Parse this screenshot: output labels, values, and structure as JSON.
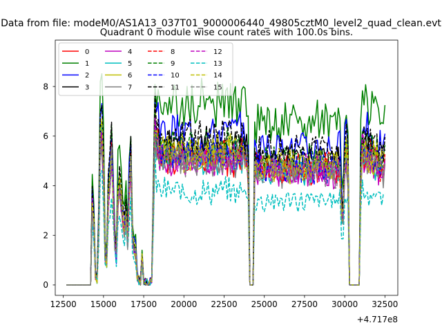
{
  "figure": {
    "suptitle": "Data from file: modeM0/AS1A13_037T01_9000006440_49805cztM0_level2_quad_clean.evt",
    "bg": "#ffffff"
  },
  "chart_data": {
    "type": "line",
    "title": "Quadrant 0 module wise count rates with 100.0s bins.",
    "xlabel": "",
    "ylabel": "",
    "x_offset_label": "+4.717e8",
    "x_offset": 471700000,
    "xlim": [
      12000,
      33300
    ],
    "ylim": [
      -0.42,
      9.87
    ],
    "xticks": [
      12500,
      15000,
      17500,
      20000,
      22500,
      25000,
      27500,
      30000,
      32500
    ],
    "xtick_labels": [
      "12500",
      "15000",
      "17500",
      "20000",
      "22500",
      "25000",
      "27500",
      "30000",
      "32500"
    ],
    "yticks": [
      0,
      2,
      4,
      6,
      8
    ],
    "ytick_labels": [
      "0",
      "2",
      "4",
      "6",
      "8"
    ],
    "legend_position": "upper-left",
    "legend_ncol": 4,
    "bin_size": 100,
    "x_start": 12700,
    "x_end": 32500,
    "profile_x": [
      12700,
      14000,
      14200,
      14300,
      14400,
      14500,
      14600,
      14700,
      14800,
      14900,
      15000,
      15100,
      15200,
      15300,
      15400,
      15500,
      15600,
      15700,
      15800,
      15900,
      16000,
      16100,
      16200,
      16300,
      16400,
      16500,
      16600,
      16700,
      16800,
      16900,
      17000,
      17100,
      17200,
      17300,
      17400,
      17500,
      17600,
      17700,
      17800,
      17900,
      18000,
      18100,
      18200,
      18300,
      18400,
      18500,
      23900,
      24000,
      24100,
      24200,
      24300,
      24400,
      29700,
      29800,
      29900,
      30000,
      30100,
      30200,
      30300,
      30900,
      31000,
      31100,
      31200,
      32500
    ],
    "profile_y": [
      0,
      0,
      0,
      3.3,
      2.4,
      0.4,
      0.2,
      2.2,
      5.4,
      5.8,
      4.3,
      1.1,
      0.9,
      3.4,
      4.1,
      5.1,
      3.6,
      1.6,
      1.1,
      3.4,
      3.9,
      3.2,
      2.6,
      2.1,
      2.9,
      1.7,
      3.9,
      4.8,
      1.8,
      1.4,
      1.3,
      0.3,
      0.2,
      0.1,
      1.0,
      0.1,
      0.1,
      0.1,
      0.0,
      0.1,
      0.2,
      2.9,
      6.4,
      5.6,
      5.6,
      5.1,
      5.1,
      4.3,
      0.0,
      0.0,
      0.0,
      4.6,
      4.6,
      2.9,
      2.6,
      4.7,
      5.0,
      4.5,
      0.0,
      0.0,
      4.4,
      5.5,
      5.2,
      4.6
    ],
    "series": [
      {
        "name": "0",
        "color": "#ff0000",
        "style": "solid",
        "scale": 1.0,
        "seed": 1
      },
      {
        "name": "1",
        "color": "#008000",
        "style": "solid",
        "scale": 1.43,
        "seed": 2
      },
      {
        "name": "2",
        "color": "#0000ff",
        "style": "solid",
        "scale": 1.21,
        "seed": 3
      },
      {
        "name": "3",
        "color": "#000000",
        "style": "solid",
        "scale": 1.08,
        "seed": 4
      },
      {
        "name": "4",
        "color": "#bf00bf",
        "style": "solid",
        "scale": 0.98,
        "seed": 5
      },
      {
        "name": "5",
        "color": "#00bfbf",
        "style": "solid",
        "scale": 1.0,
        "seed": 6
      },
      {
        "name": "6",
        "color": "#bfbf00",
        "style": "solid",
        "scale": 1.03,
        "seed": 7
      },
      {
        "name": "7",
        "color": "#808080",
        "style": "solid",
        "scale": 0.98,
        "seed": 8
      },
      {
        "name": "8",
        "color": "#ff0000",
        "style": "dashed",
        "scale": 1.02,
        "seed": 9
      },
      {
        "name": "9",
        "color": "#008000",
        "style": "dashed",
        "scale": 1.1,
        "seed": 10
      },
      {
        "name": "10",
        "color": "#0000ff",
        "style": "dashed",
        "scale": 1.04,
        "seed": 11
      },
      {
        "name": "11",
        "color": "#000000",
        "style": "dashed",
        "scale": 1.18,
        "seed": 12
      },
      {
        "name": "12",
        "color": "#bf00bf",
        "style": "dashed",
        "scale": 1.0,
        "seed": 13
      },
      {
        "name": "13",
        "color": "#00bfbf",
        "style": "dashed",
        "scale": 0.74,
        "seed": 14
      },
      {
        "name": "14",
        "color": "#bfbf00",
        "style": "dashed",
        "scale": 1.06,
        "seed": 15
      },
      {
        "name": "15",
        "color": "#808080",
        "style": "dashed",
        "scale": 1.0,
        "seed": 16
      }
    ]
  }
}
